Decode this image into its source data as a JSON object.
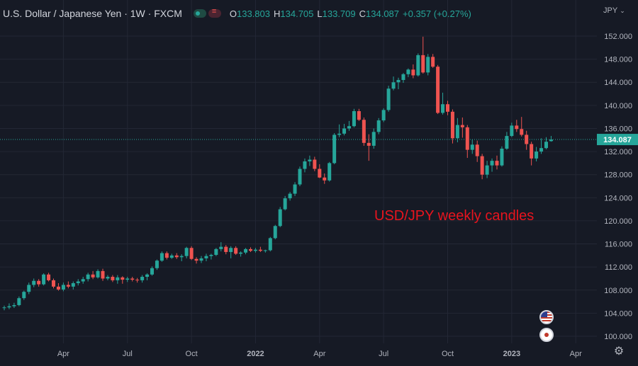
{
  "header": {
    "symbol": "U.S. Dollar / Japanese Yen · 1W · FXCM",
    "open_label": "O",
    "open": "133.803",
    "high_label": "H",
    "high": "134.705",
    "low_label": "L",
    "low": "133.709",
    "close_label": "C",
    "close": "134.087",
    "change": "+0.357 (+0.27%)"
  },
  "currency_selector": "JPY",
  "last_price_label": "134.087",
  "annotation": "USD/JPY weekly candles",
  "colors": {
    "up": "#26a69a",
    "down": "#ef5350",
    "background": "#161a25",
    "grid": "#232735",
    "annotation": "#e8141e"
  },
  "icons": [
    "toggle-indicator-icon",
    "chevron-down-icon",
    "us-flag-icon",
    "japan-flag-icon",
    "gear-icon"
  ],
  "chart_data": {
    "type": "candlestick",
    "timeframe": "1W",
    "y_ticks": [
      "100.000",
      "104.000",
      "108.000",
      "112.000",
      "116.000",
      "120.000",
      "124.000",
      "128.000",
      "132.000",
      "136.000",
      "140.000",
      "144.000",
      "148.000",
      "152.000"
    ],
    "ylim": [
      98.5,
      154
    ],
    "x_ticks": [
      {
        "label": "Apr",
        "week": 12
      },
      {
        "label": "Jul",
        "week": 25
      },
      {
        "label": "Oct",
        "week": 38
      },
      {
        "label": "2022",
        "week": 51
      },
      {
        "label": "Apr",
        "week": 64
      },
      {
        "label": "Jul",
        "week": 77
      },
      {
        "label": "Oct",
        "week": 90
      },
      {
        "label": "2023",
        "week": 103
      },
      {
        "label": "Apr",
        "week": 116
      }
    ],
    "last_price": 134.087,
    "ohlc": [
      [
        104.9,
        105.3,
        104.5,
        105.0
      ],
      [
        105.0,
        105.7,
        104.7,
        105.2
      ],
      [
        105.2,
        105.8,
        104.9,
        105.4
      ],
      [
        105.4,
        106.9,
        105.2,
        106.6
      ],
      [
        106.6,
        107.9,
        106.3,
        107.7
      ],
      [
        107.7,
        109.3,
        107.3,
        108.9
      ],
      [
        108.9,
        110.0,
        108.5,
        109.6
      ],
      [
        109.6,
        109.9,
        108.6,
        109.0
      ],
      [
        109.0,
        110.9,
        108.8,
        110.7
      ],
      [
        110.7,
        111.0,
        109.5,
        109.7
      ],
      [
        109.7,
        110.0,
        108.3,
        108.6
      ],
      [
        108.6,
        109.2,
        107.9,
        108.1
      ],
      [
        108.1,
        109.3,
        107.8,
        108.9
      ],
      [
        108.9,
        109.5,
        108.3,
        108.6
      ],
      [
        108.6,
        109.5,
        108.1,
        109.2
      ],
      [
        109.2,
        109.9,
        108.8,
        109.5
      ],
      [
        109.5,
        110.3,
        109.1,
        109.9
      ],
      [
        109.9,
        111.0,
        109.5,
        110.7
      ],
      [
        110.7,
        111.3,
        109.9,
        110.2
      ],
      [
        110.2,
        111.6,
        110.0,
        111.3
      ],
      [
        111.3,
        111.7,
        109.6,
        110.0
      ],
      [
        110.0,
        110.6,
        109.7,
        110.3
      ],
      [
        110.3,
        110.6,
        109.4,
        109.7
      ],
      [
        109.7,
        110.6,
        109.1,
        110.2
      ],
      [
        110.2,
        110.4,
        109.1,
        109.8
      ],
      [
        109.8,
        110.3,
        109.4,
        110.0
      ],
      [
        110.0,
        110.3,
        109.5,
        109.8
      ],
      [
        109.8,
        110.1,
        109.3,
        109.7
      ],
      [
        109.7,
        110.6,
        109.3,
        110.3
      ],
      [
        110.3,
        110.9,
        109.7,
        110.7
      ],
      [
        110.7,
        112.1,
        110.5,
        111.8
      ],
      [
        111.8,
        113.3,
        111.5,
        113.1
      ],
      [
        113.1,
        114.7,
        112.9,
        114.4
      ],
      [
        114.4,
        114.7,
        113.3,
        113.6
      ],
      [
        113.6,
        114.3,
        113.4,
        114.0
      ],
      [
        114.0,
        114.4,
        113.4,
        113.7
      ],
      [
        113.7,
        114.2,
        113.0,
        113.9
      ],
      [
        113.9,
        115.5,
        113.5,
        115.3
      ],
      [
        115.3,
        115.6,
        113.2,
        113.4
      ],
      [
        113.4,
        113.7,
        112.6,
        113.1
      ],
      [
        113.1,
        113.9,
        112.7,
        113.5
      ],
      [
        113.5,
        114.3,
        113.0,
        113.9
      ],
      [
        113.9,
        114.3,
        113.3,
        114.1
      ],
      [
        114.1,
        115.3,
        113.9,
        115.1
      ],
      [
        115.1,
        116.3,
        114.7,
        115.5
      ],
      [
        115.5,
        115.8,
        114.2,
        114.6
      ],
      [
        114.6,
        115.6,
        113.5,
        115.3
      ],
      [
        115.3,
        115.6,
        114.1,
        114.3
      ],
      [
        114.3,
        114.7,
        113.8,
        114.5
      ],
      [
        114.5,
        115.3,
        114.2,
        115.1
      ],
      [
        115.1,
        115.4,
        114.6,
        114.8
      ],
      [
        114.8,
        115.3,
        114.5,
        115.0
      ],
      [
        115.0,
        115.5,
        114.6,
        114.8
      ],
      [
        114.8,
        115.0,
        114.5,
        114.9
      ],
      [
        114.9,
        117.2,
        114.7,
        117.0
      ],
      [
        117.0,
        119.3,
        116.8,
        119.1
      ],
      [
        119.1,
        122.4,
        118.9,
        122.0
      ],
      [
        122.0,
        124.3,
        121.8,
        123.9
      ],
      [
        123.9,
        125.0,
        123.5,
        124.7
      ],
      [
        124.7,
        126.7,
        124.3,
        126.3
      ],
      [
        126.3,
        129.4,
        126.0,
        129.0
      ],
      [
        129.0,
        130.8,
        128.4,
        130.3
      ],
      [
        130.3,
        131.3,
        129.5,
        130.6
      ],
      [
        130.6,
        131.1,
        128.6,
        129.0
      ],
      [
        129.0,
        129.8,
        127.4,
        127.5
      ],
      [
        127.5,
        128.2,
        126.4,
        127.0
      ],
      [
        127.0,
        130.2,
        126.8,
        130.0
      ],
      [
        130.0,
        135.2,
        129.8,
        134.9
      ],
      [
        134.9,
        136.7,
        134.5,
        135.1
      ],
      [
        135.1,
        136.8,
        134.8,
        136.0
      ],
      [
        136.0,
        137.3,
        135.6,
        136.4
      ],
      [
        136.4,
        139.4,
        136.2,
        139.0
      ],
      [
        139.0,
        139.4,
        137.3,
        137.5
      ],
      [
        137.5,
        137.9,
        133.0,
        133.5
      ],
      [
        133.5,
        135.0,
        130.4,
        133.0
      ],
      [
        133.0,
        136.0,
        132.5,
        135.4
      ],
      [
        135.4,
        137.8,
        135.0,
        137.4
      ],
      [
        137.4,
        139.5,
        137.1,
        139.2
      ],
      [
        139.2,
        143.4,
        138.9,
        142.9
      ],
      [
        142.9,
        145.0,
        142.6,
        144.0
      ],
      [
        144.0,
        144.8,
        142.8,
        144.4
      ],
      [
        144.4,
        145.6,
        143.9,
        145.4
      ],
      [
        145.4,
        146.4,
        144.9,
        146.2
      ],
      [
        146.2,
        147.1,
        144.7,
        145.2
      ],
      [
        145.2,
        149.0,
        145.0,
        148.7
      ],
      [
        148.7,
        151.9,
        145.5,
        145.7
      ],
      [
        145.7,
        148.9,
        145.2,
        148.4
      ],
      [
        148.4,
        148.9,
        146.5,
        146.7
      ],
      [
        146.7,
        147.0,
        138.5,
        138.7
      ],
      [
        138.7,
        142.2,
        138.4,
        140.2
      ],
      [
        140.2,
        140.8,
        138.3,
        138.9
      ],
      [
        138.9,
        139.3,
        133.4,
        134.3
      ],
      [
        134.3,
        137.8,
        133.6,
        136.6
      ],
      [
        136.6,
        137.9,
        134.4,
        136.2
      ],
      [
        136.2,
        136.6,
        130.9,
        132.3
      ],
      [
        132.3,
        134.1,
        131.6,
        133.2
      ],
      [
        133.2,
        133.9,
        130.2,
        131.2
      ],
      [
        131.2,
        131.6,
        127.2,
        128.0
      ],
      [
        128.0,
        130.4,
        127.4,
        129.6
      ],
      [
        129.6,
        130.8,
        128.5,
        130.4
      ],
      [
        130.4,
        131.3,
        128.9,
        129.6
      ],
      [
        129.6,
        132.9,
        129.4,
        132.5
      ],
      [
        132.5,
        135.4,
        132.3,
        134.7
      ],
      [
        134.7,
        137.0,
        134.5,
        136.5
      ],
      [
        136.5,
        137.5,
        135.4,
        135.9
      ],
      [
        135.9,
        138.0,
        134.6,
        134.9
      ],
      [
        134.9,
        135.6,
        132.3,
        133.3
      ],
      [
        133.3,
        133.7,
        129.6,
        130.8
      ],
      [
        130.8,
        132.8,
        130.3,
        132.0
      ],
      [
        132.0,
        134.3,
        131.6,
        132.6
      ],
      [
        132.6,
        134.5,
        132.4,
        133.7
      ],
      [
        133.803,
        134.705,
        133.709,
        134.087
      ]
    ]
  }
}
